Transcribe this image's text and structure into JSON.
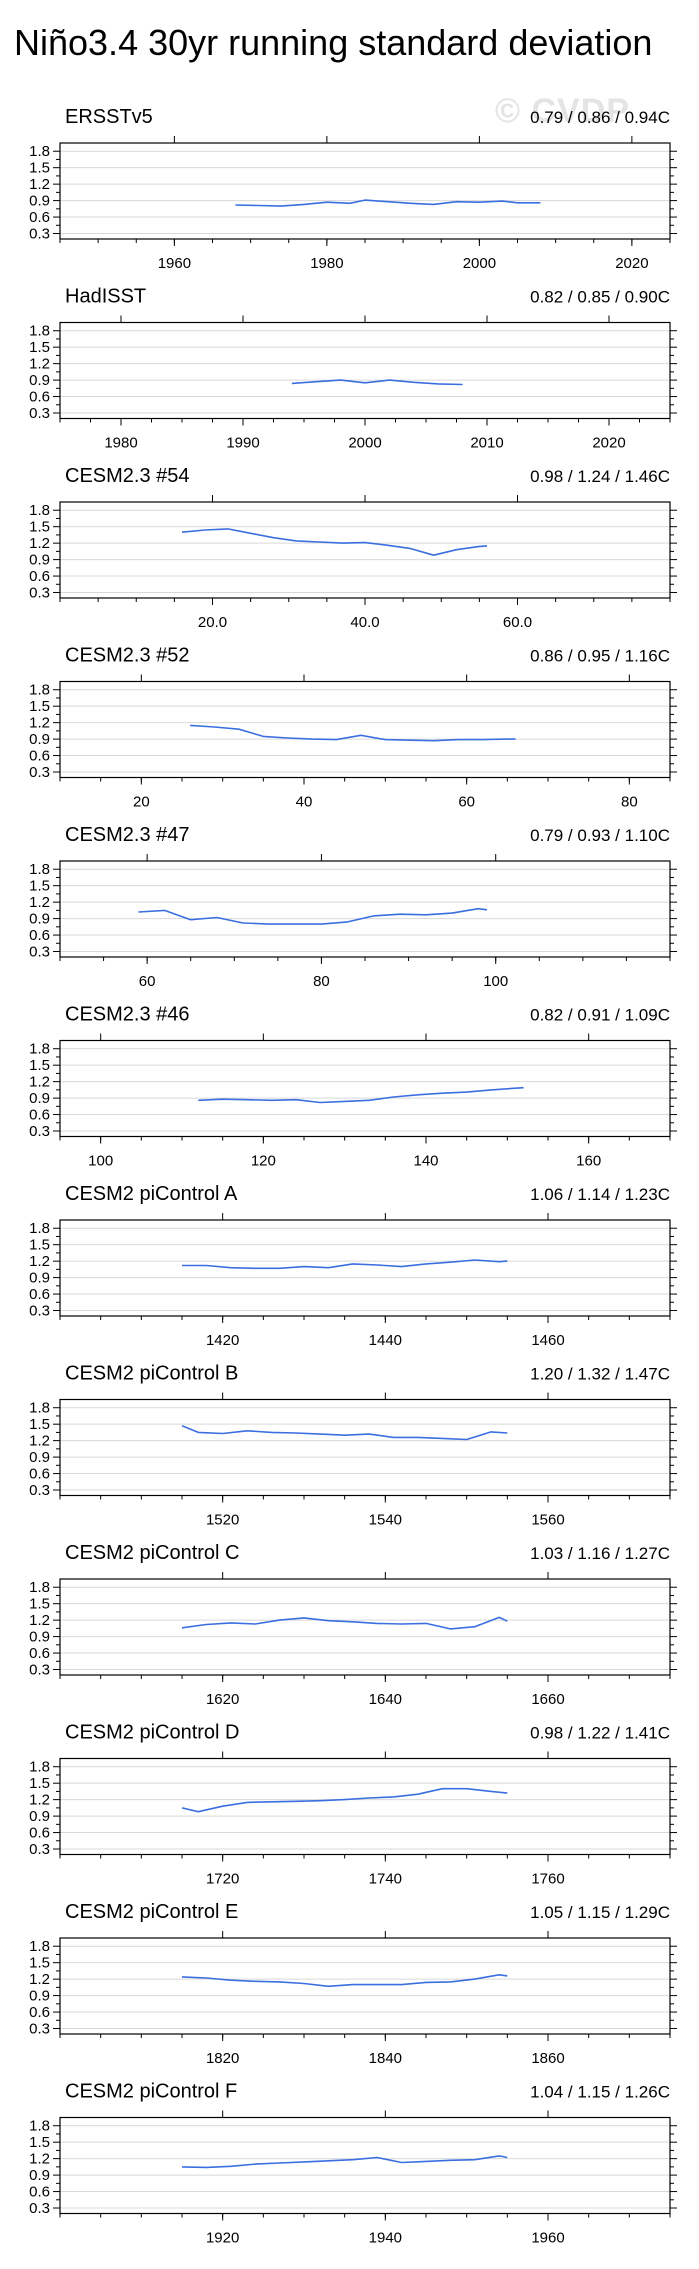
{
  "title": "Niño3.4 30yr running standard deviation",
  "watermark": "© CVDP",
  "colors": {
    "line": "#3b6fe0",
    "grid": "#d9d9d9",
    "axis": "#000000"
  },
  "chart_data": [
    {
      "type": "line",
      "title": "ERSSTv5",
      "stats": "0.79 / 0.86 / 0.94C",
      "xlim": [
        1945,
        2025
      ],
      "ylim": [
        0.2,
        1.95
      ],
      "xticks": [
        1960,
        1980,
        2000,
        2020
      ],
      "xticklabels": [
        "1960",
        "1980",
        "2000",
        "2020"
      ],
      "xticks_top": [
        1960,
        1980,
        2000,
        2020
      ],
      "yticks": [
        0.3,
        0.6,
        0.9,
        1.2,
        1.5,
        1.8
      ],
      "yticklabels": [
        "0.3",
        "0.6",
        "0.9",
        "1.2",
        "1.5",
        "1.8"
      ],
      "x": [
        1968,
        1971,
        1974,
        1977,
        1980,
        1983,
        1985,
        1988,
        1991,
        1994,
        1997,
        2000,
        2003,
        2005,
        2008
      ],
      "y": [
        0.82,
        0.81,
        0.8,
        0.83,
        0.87,
        0.85,
        0.91,
        0.88,
        0.85,
        0.83,
        0.88,
        0.87,
        0.89,
        0.86,
        0.86
      ]
    },
    {
      "type": "line",
      "title": "HadISST",
      "stats": "0.82 / 0.85 / 0.90C",
      "xlim": [
        1975,
        2025
      ],
      "ylim": [
        0.2,
        1.95
      ],
      "xticks": [
        1980,
        1990,
        2000,
        2010,
        2020
      ],
      "xticklabels": [
        "1980",
        "1990",
        "2000",
        "2010",
        "2020"
      ],
      "xticks_top": [
        1980,
        1990,
        2000,
        2010,
        2020
      ],
      "yticks": [
        0.3,
        0.6,
        0.9,
        1.2,
        1.5,
        1.8
      ],
      "yticklabels": [
        "0.3",
        "0.6",
        "0.9",
        "1.2",
        "1.5",
        "1.8"
      ],
      "x": [
        1994,
        1996,
        1998,
        2000,
        2002,
        2004,
        2006,
        2008
      ],
      "y": [
        0.84,
        0.87,
        0.9,
        0.85,
        0.9,
        0.86,
        0.83,
        0.82
      ]
    },
    {
      "type": "line",
      "title": "CESM2.3 #54",
      "stats": "0.98 / 1.24 / 1.46C",
      "xlim": [
        0,
        80
      ],
      "ylim": [
        0.2,
        1.95
      ],
      "xticks": [
        20,
        40,
        60
      ],
      "xticklabels": [
        "20.0",
        "40.0",
        "60.0"
      ],
      "xticks_top": [
        20,
        40,
        60
      ],
      "yticks": [
        0.3,
        0.6,
        0.9,
        1.2,
        1.5,
        1.8
      ],
      "yticklabels": [
        "0.3",
        "0.6",
        "0.9",
        "1.2",
        "1.5",
        "1.8"
      ],
      "x": [
        16,
        19,
        22,
        25,
        28,
        31,
        34,
        37,
        40,
        43,
        46,
        49,
        52,
        55,
        56
      ],
      "y": [
        1.4,
        1.44,
        1.46,
        1.38,
        1.3,
        1.24,
        1.22,
        1.2,
        1.21,
        1.16,
        1.1,
        0.98,
        1.08,
        1.14,
        1.15
      ]
    },
    {
      "type": "line",
      "title": "CESM2.3 #52",
      "stats": "0.86 / 0.95 / 1.16C",
      "xlim": [
        10,
        85
      ],
      "ylim": [
        0.2,
        1.95
      ],
      "xticks": [
        20,
        40,
        60,
        80
      ],
      "xticklabels": [
        "20",
        "40",
        "60",
        "80"
      ],
      "xticks_top": [
        20,
        40,
        60,
        80
      ],
      "yticks": [
        0.3,
        0.6,
        0.9,
        1.2,
        1.5,
        1.8
      ],
      "yticklabels": [
        "0.3",
        "0.6",
        "0.9",
        "1.2",
        "1.5",
        "1.8"
      ],
      "x": [
        26,
        29,
        32,
        35,
        38,
        41,
        44,
        47,
        50,
        53,
        56,
        59,
        62,
        65,
        66
      ],
      "y": [
        1.15,
        1.12,
        1.08,
        0.95,
        0.92,
        0.9,
        0.89,
        0.97,
        0.89,
        0.88,
        0.87,
        0.89,
        0.89,
        0.9,
        0.9
      ]
    },
    {
      "type": "line",
      "title": "CESM2.3 #47",
      "stats": "0.79 / 0.93 / 1.10C",
      "xlim": [
        50,
        120
      ],
      "ylim": [
        0.2,
        1.95
      ],
      "xticks": [
        60,
        80,
        100
      ],
      "xticklabels": [
        "60",
        "80",
        "100"
      ],
      "xticks_top": [
        60,
        80,
        100
      ],
      "yticks": [
        0.3,
        0.6,
        0.9,
        1.2,
        1.5,
        1.8
      ],
      "yticklabels": [
        "0.3",
        "0.6",
        "0.9",
        "1.2",
        "1.5",
        "1.8"
      ],
      "x": [
        59,
        62,
        65,
        68,
        71,
        74,
        77,
        80,
        83,
        86,
        89,
        92,
        95,
        98,
        99
      ],
      "y": [
        1.02,
        1.05,
        0.88,
        0.92,
        0.82,
        0.8,
        0.8,
        0.8,
        0.84,
        0.95,
        0.98,
        0.97,
        1.0,
        1.08,
        1.06
      ]
    },
    {
      "type": "line",
      "title": "CESM2.3 #46",
      "stats": "0.82 / 0.91 / 1.09C",
      "xlim": [
        95,
        170
      ],
      "ylim": [
        0.2,
        1.95
      ],
      "xticks": [
        100,
        120,
        140,
        160
      ],
      "xticklabels": [
        "100",
        "120",
        "140",
        "160"
      ],
      "xticks_top": [
        100,
        120,
        140,
        160
      ],
      "yticks": [
        0.3,
        0.6,
        0.9,
        1.2,
        1.5,
        1.8
      ],
      "yticklabels": [
        "0.3",
        "0.6",
        "0.9",
        "1.2",
        "1.5",
        "1.8"
      ],
      "x": [
        112,
        115,
        118,
        121,
        124,
        127,
        130,
        133,
        136,
        139,
        142,
        145,
        148,
        151,
        152
      ],
      "y": [
        0.86,
        0.88,
        0.87,
        0.86,
        0.87,
        0.82,
        0.84,
        0.86,
        0.92,
        0.96,
        0.99,
        1.01,
        1.05,
        1.08,
        1.09
      ]
    },
    {
      "type": "line",
      "title": "CESM2 piControl A",
      "stats": "1.06 / 1.14 / 1.23C",
      "xlim": [
        1400,
        1475
      ],
      "ylim": [
        0.2,
        1.95
      ],
      "xticks": [
        1420,
        1440,
        1460
      ],
      "xticklabels": [
        "1420",
        "1440",
        "1460"
      ],
      "xticks_top": [
        1420,
        1440,
        1460
      ],
      "yticks": [
        0.3,
        0.6,
        0.9,
        1.2,
        1.5,
        1.8
      ],
      "yticklabels": [
        "0.3",
        "0.6",
        "0.9",
        "1.2",
        "1.5",
        "1.8"
      ],
      "x": [
        1415,
        1418,
        1421,
        1424,
        1427,
        1430,
        1433,
        1436,
        1439,
        1442,
        1445,
        1448,
        1451,
        1454,
        1455
      ],
      "y": [
        1.12,
        1.12,
        1.08,
        1.07,
        1.07,
        1.1,
        1.08,
        1.15,
        1.13,
        1.1,
        1.15,
        1.18,
        1.22,
        1.19,
        1.2
      ]
    },
    {
      "type": "line",
      "title": "CESM2 piControl B",
      "stats": "1.20 / 1.32 / 1.47C",
      "xlim": [
        1500,
        1575
      ],
      "ylim": [
        0.2,
        1.95
      ],
      "xticks": [
        1520,
        1540,
        1560
      ],
      "xticklabels": [
        "1520",
        "1540",
        "1560"
      ],
      "xticks_top": [
        1520,
        1540,
        1560
      ],
      "yticks": [
        0.3,
        0.6,
        0.9,
        1.2,
        1.5,
        1.8
      ],
      "yticklabels": [
        "0.3",
        "0.6",
        "0.9",
        "1.2",
        "1.5",
        "1.8"
      ],
      "x": [
        1515,
        1517,
        1520,
        1523,
        1526,
        1529,
        1532,
        1535,
        1538,
        1541,
        1544,
        1547,
        1550,
        1553,
        1555
      ],
      "y": [
        1.47,
        1.35,
        1.33,
        1.38,
        1.35,
        1.34,
        1.32,
        1.3,
        1.32,
        1.26,
        1.26,
        1.24,
        1.22,
        1.36,
        1.34
      ]
    },
    {
      "type": "line",
      "title": "CESM2 piControl C",
      "stats": "1.03 / 1.16 / 1.27C",
      "xlim": [
        1600,
        1675
      ],
      "ylim": [
        0.2,
        1.95
      ],
      "xticks": [
        1620,
        1640,
        1660
      ],
      "xticklabels": [
        "1620",
        "1640",
        "1660"
      ],
      "xticks_top": [
        1620,
        1640,
        1660
      ],
      "yticks": [
        0.3,
        0.6,
        0.9,
        1.2,
        1.5,
        1.8
      ],
      "yticklabels": [
        "0.3",
        "0.6",
        "0.9",
        "1.2",
        "1.5",
        "1.8"
      ],
      "x": [
        1615,
        1618,
        1621,
        1624,
        1627,
        1630,
        1633,
        1636,
        1639,
        1642,
        1645,
        1648,
        1651,
        1654,
        1655
      ],
      "y": [
        1.06,
        1.12,
        1.15,
        1.13,
        1.2,
        1.24,
        1.19,
        1.17,
        1.14,
        1.13,
        1.14,
        1.04,
        1.08,
        1.25,
        1.18
      ]
    },
    {
      "type": "line",
      "title": "CESM2 piControl D",
      "stats": "0.98 / 1.22 / 1.41C",
      "xlim": [
        1700,
        1775
      ],
      "ylim": [
        0.2,
        1.95
      ],
      "xticks": [
        1720,
        1740,
        1760
      ],
      "xticklabels": [
        "1720",
        "1740",
        "1760"
      ],
      "xticks_top": [
        1720,
        1740,
        1760
      ],
      "yticks": [
        0.3,
        0.6,
        0.9,
        1.2,
        1.5,
        1.8
      ],
      "yticklabels": [
        "0.3",
        "0.6",
        "0.9",
        "1.2",
        "1.5",
        "1.8"
      ],
      "x": [
        1715,
        1717,
        1720,
        1723,
        1726,
        1729,
        1732,
        1735,
        1738,
        1741,
        1744,
        1747,
        1750,
        1753,
        1755
      ],
      "y": [
        1.05,
        0.98,
        1.08,
        1.15,
        1.16,
        1.17,
        1.18,
        1.2,
        1.23,
        1.25,
        1.3,
        1.4,
        1.4,
        1.35,
        1.32
      ]
    },
    {
      "type": "line",
      "title": "CESM2 piControl E",
      "stats": "1.05 / 1.15 / 1.29C",
      "xlim": [
        1800,
        1875
      ],
      "ylim": [
        0.2,
        1.95
      ],
      "xticks": [
        1820,
        1840,
        1860
      ],
      "xticklabels": [
        "1820",
        "1840",
        "1860"
      ],
      "xticks_top": [
        1820,
        1840,
        1860
      ],
      "yticks": [
        0.3,
        0.6,
        0.9,
        1.2,
        1.5,
        1.8
      ],
      "yticklabels": [
        "0.3",
        "0.6",
        "0.9",
        "1.2",
        "1.5",
        "1.8"
      ],
      "x": [
        1815,
        1818,
        1821,
        1824,
        1827,
        1830,
        1833,
        1836,
        1839,
        1842,
        1845,
        1848,
        1851,
        1854,
        1855
      ],
      "y": [
        1.24,
        1.22,
        1.18,
        1.16,
        1.15,
        1.12,
        1.07,
        1.1,
        1.1,
        1.1,
        1.14,
        1.15,
        1.2,
        1.28,
        1.26
      ]
    },
    {
      "type": "line",
      "title": "CESM2 piControl F",
      "stats": "1.04 / 1.15 / 1.26C",
      "xlim": [
        1900,
        1975
      ],
      "ylim": [
        0.2,
        1.95
      ],
      "xticks": [
        1920,
        1940,
        1960
      ],
      "xticklabels": [
        "1920",
        "1940",
        "1960"
      ],
      "xticks_top": [
        1920,
        1940,
        1960
      ],
      "yticks": [
        0.3,
        0.6,
        0.9,
        1.2,
        1.5,
        1.8
      ],
      "yticklabels": [
        "0.3",
        "0.6",
        "0.9",
        "1.2",
        "1.5",
        "1.8"
      ],
      "x": [
        1915,
        1918,
        1921,
        1924,
        1927,
        1930,
        1933,
        1936,
        1939,
        1942,
        1945,
        1948,
        1951,
        1954,
        1955
      ],
      "y": [
        1.05,
        1.04,
        1.06,
        1.1,
        1.12,
        1.14,
        1.16,
        1.18,
        1.22,
        1.13,
        1.15,
        1.17,
        1.18,
        1.25,
        1.22
      ]
    }
  ]
}
